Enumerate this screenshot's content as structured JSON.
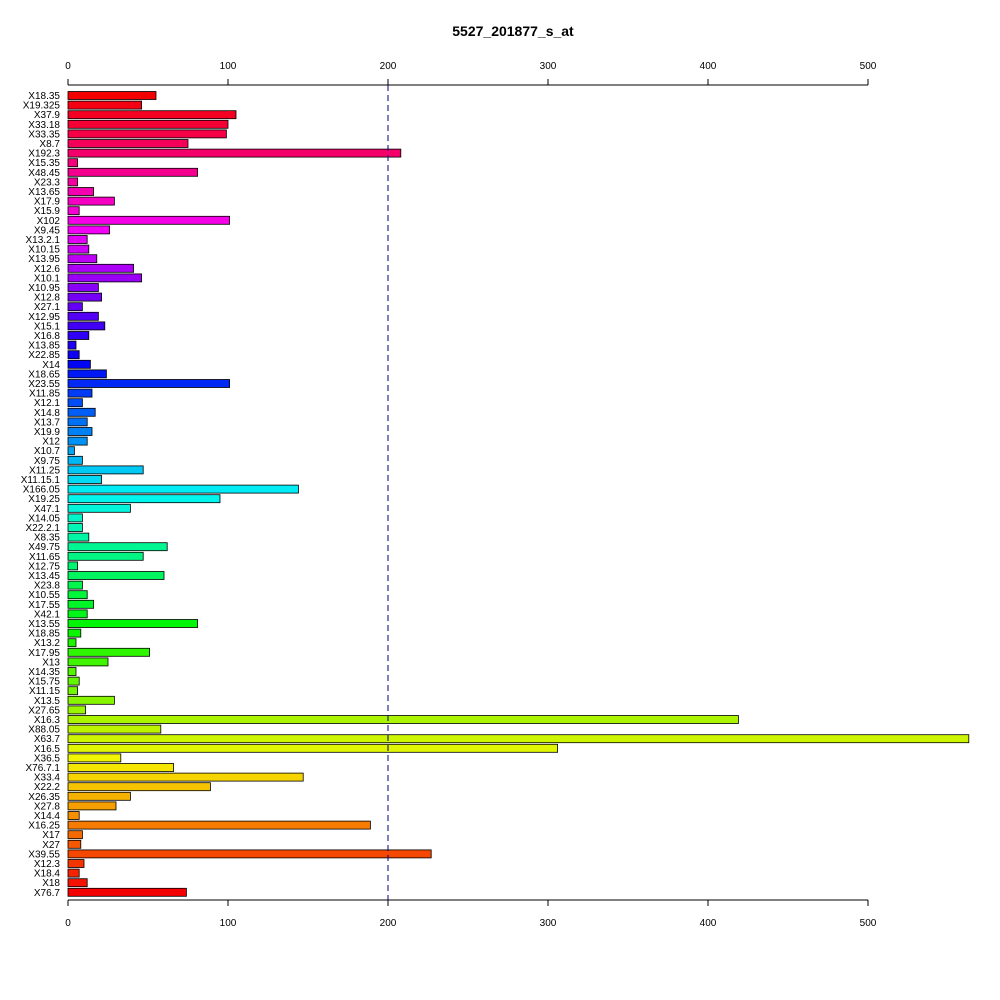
{
  "chart_data": {
    "type": "bar",
    "orientation": "horizontal",
    "title": "5527_201877_s_at",
    "xlabel": "",
    "ylabel": "",
    "xlim": [
      0,
      563
    ],
    "xticks": [
      0,
      100,
      200,
      300,
      400,
      500
    ],
    "tick_labels": [
      "0",
      "100",
      "200",
      "300",
      "400",
      "500"
    ],
    "reference_line": 200,
    "grid": false,
    "legend": "none",
    "categories": [
      "X18.35",
      "X19.325",
      "X37.9",
      "X33.18",
      "X33.35",
      "X8.7",
      "X192.3",
      "X15.35",
      "X48.45",
      "X23.3",
      "X13.65",
      "X17.9",
      "X15.9",
      "X102",
      "X9.45",
      "X13.2.1",
      "X10.15",
      "X13.95",
      "X12.6",
      "X10.1",
      "X10.95",
      "X12.8",
      "X27.1",
      "X12.95",
      "X15.1",
      "X16.8",
      "X13.85",
      "X22.85",
      "X14",
      "X18.65",
      "X23.55",
      "X11.85",
      "X12.1",
      "X14.8",
      "X13.7",
      "X19.9",
      "X12",
      "X10.7",
      "X9.75",
      "X11.25",
      "X11.15.1",
      "X166.05",
      "X19.25",
      "X47.1",
      "X14.05",
      "X22.2.1",
      "X8.35",
      "X49.75",
      "X11.65",
      "X12.75",
      "X13.45",
      "X23.8",
      "X10.55",
      "X17.55",
      "X42.1",
      "X13.55",
      "X18.85",
      "X13.2",
      "X17.95",
      "X13",
      "X14.35",
      "X15.75",
      "X11.15",
      "X13.5",
      "X27.65",
      "X16.3",
      "X88.05",
      "X63.7",
      "X16.5",
      "X36.5",
      "X76.7.1",
      "X33.4",
      "X22.2",
      "X26.35",
      "X27.8",
      "X14.4",
      "X16.25",
      "X17",
      "X27",
      "X39.55",
      "X12.3",
      "X18.4",
      "X18",
      "X76.7"
    ],
    "values": [
      55,
      46,
      105,
      100,
      99,
      75,
      208,
      6,
      81,
      6,
      16,
      29,
      7,
      101,
      26,
      12,
      13,
      18,
      41,
      46,
      19,
      21,
      9,
      19,
      23,
      13,
      5,
      7,
      14,
      24,
      101,
      15,
      9,
      17,
      12,
      15,
      12,
      4,
      9,
      47,
      21,
      144,
      95,
      39,
      9,
      9,
      13,
      62,
      47,
      6,
      60,
      9,
      12,
      16,
      12,
      81,
      8,
      5,
      51,
      25,
      5,
      7,
      6,
      29,
      11,
      419,
      58,
      563,
      306,
      33,
      66,
      147,
      89,
      39,
      30,
      7,
      189,
      9,
      8,
      227,
      10,
      7,
      12,
      74
    ]
  }
}
